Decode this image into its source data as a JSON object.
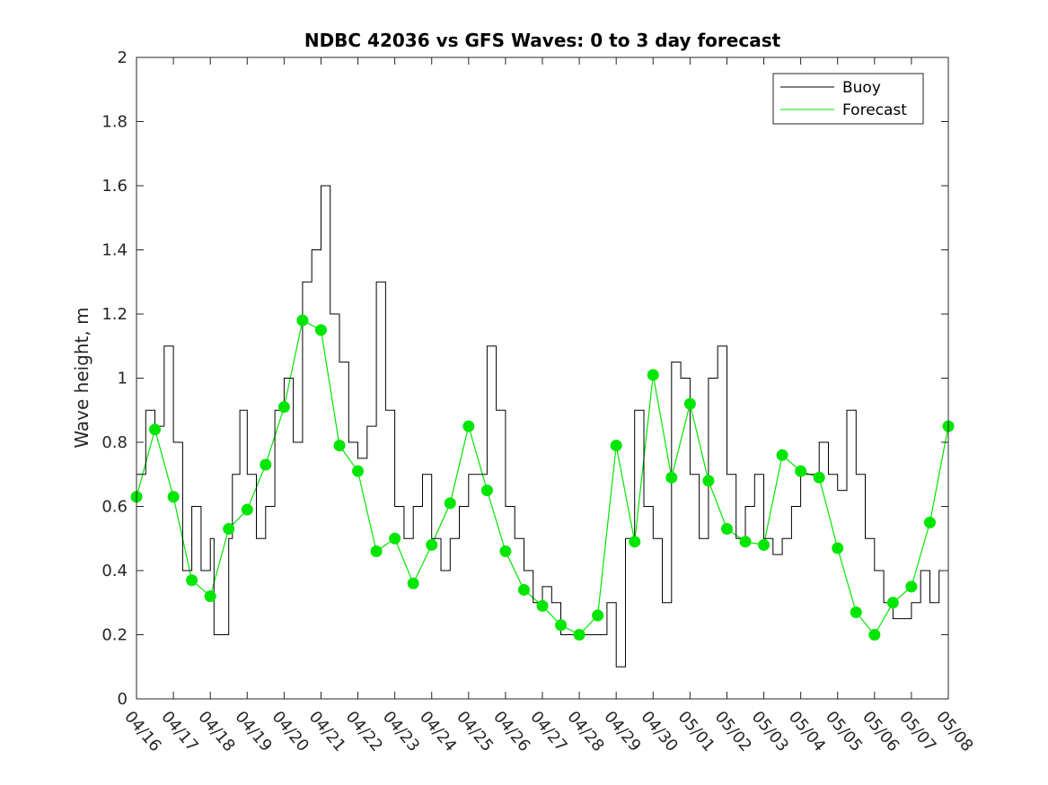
{
  "chart_data": {
    "type": "line",
    "title": "NDBC 42036 vs GFS Waves: 0 to 3 day forecast",
    "xlabel": "",
    "ylabel": "Wave height, m",
    "ylim": [
      0,
      2
    ],
    "yticks": [
      "0",
      "0.2",
      "0.4",
      "0.6",
      "0.8",
      "1",
      "1.2",
      "1.4",
      "1.6",
      "1.8",
      "2"
    ],
    "xlim_days": [
      0,
      22
    ],
    "xticks": [
      "04/16",
      "04/17",
      "04/18",
      "04/19",
      "04/20",
      "04/21",
      "04/22",
      "04/23",
      "04/24",
      "04/25",
      "04/26",
      "04/27",
      "04/28",
      "04/29",
      "04/30",
      "05/01",
      "05/02",
      "05/03",
      "05/04",
      "05/05",
      "05/06",
      "05/07",
      "05/08"
    ],
    "grid": false,
    "legend_position": "top-right",
    "legend": [
      {
        "label": "Buoy",
        "color": "#000000"
      },
      {
        "label": "Forecast",
        "color": "#00e600"
      }
    ],
    "series": [
      {
        "name": "Buoy",
        "color": "#000000",
        "x": [
          0,
          0.25,
          0.5,
          0.75,
          1.0,
          1.25,
          1.5,
          1.75,
          2.0,
          2.1,
          2.25,
          2.5,
          2.6,
          2.8,
          3.0,
          3.25,
          3.5,
          3.75,
          4.0,
          4.25,
          4.5,
          4.75,
          5.0,
          5.25,
          5.5,
          5.75,
          6.0,
          6.25,
          6.5,
          6.75,
          7.0,
          7.25,
          7.5,
          7.75,
          8.0,
          8.25,
          8.5,
          8.75,
          9.0,
          9.25,
          9.5,
          9.75,
          10.0,
          10.25,
          10.5,
          10.75,
          11.0,
          11.25,
          11.5,
          11.75,
          12.0,
          12.25,
          12.5,
          12.75,
          13.0,
          13.25,
          13.5,
          13.75,
          14.0,
          14.25,
          14.5,
          14.75,
          15.0,
          15.25,
          15.5,
          15.75,
          16.0,
          16.25,
          16.5,
          16.75,
          17.0,
          17.25,
          17.5,
          17.75,
          18.0,
          18.25,
          18.5,
          18.75,
          19.0,
          19.25,
          19.5,
          19.75,
          20.0,
          20.25,
          20.5,
          20.75,
          21.0,
          21.25,
          21.5,
          21.75,
          22.0
        ],
        "y": [
          0.7,
          0.9,
          0.85,
          1.1,
          0.8,
          0.4,
          0.6,
          0.4,
          0.5,
          0.2,
          0.2,
          0.5,
          0.7,
          0.9,
          0.7,
          0.5,
          0.6,
          0.9,
          1.0,
          0.8,
          1.3,
          1.4,
          1.6,
          1.2,
          1.05,
          0.8,
          0.75,
          0.85,
          1.3,
          0.9,
          0.6,
          0.5,
          0.6,
          0.7,
          0.5,
          0.4,
          0.5,
          0.6,
          0.7,
          0.7,
          1.1,
          0.9,
          0.6,
          0.5,
          0.4,
          0.3,
          0.35,
          0.3,
          0.2,
          0.2,
          0.2,
          0.2,
          0.2,
          0.3,
          0.1,
          0.5,
          0.9,
          0.6,
          0.5,
          0.3,
          1.05,
          1.0,
          0.7,
          0.5,
          1.0,
          1.1,
          0.7,
          0.5,
          0.6,
          0.7,
          0.5,
          0.45,
          0.5,
          0.6,
          0.7,
          0.7,
          0.8,
          0.7,
          0.65,
          0.9,
          0.7,
          0.5,
          0.4,
          0.3,
          0.25,
          0.25,
          0.3,
          0.4,
          0.3,
          0.4,
          0.6
        ]
      },
      {
        "name": "Forecast",
        "color": "#00e600",
        "x": [
          0,
          0.5,
          1.0,
          1.5,
          2.0,
          2.5,
          3.0,
          3.5,
          4.0,
          4.5,
          5.0,
          5.5,
          6.0,
          6.5,
          7.0,
          7.5,
          8.0,
          8.5,
          9.0,
          9.5,
          10.0,
          10.5,
          11.0,
          11.5,
          12.0,
          12.5,
          13.0,
          13.5,
          14.0,
          14.5,
          15.0,
          15.5,
          16.0,
          16.5,
          17.0,
          17.5,
          18.0,
          18.5,
          19.0,
          19.5,
          20.0,
          20.5,
          21.0,
          21.5,
          22.0
        ],
        "y": [
          0.63,
          0.84,
          0.63,
          0.37,
          0.32,
          0.53,
          0.59,
          0.73,
          0.91,
          1.18,
          1.15,
          0.79,
          0.71,
          0.46,
          0.5,
          0.36,
          0.48,
          0.61,
          0.85,
          0.65,
          0.46,
          0.34,
          0.29,
          0.23,
          0.2,
          0.26,
          0.79,
          0.49,
          1.01,
          0.69,
          0.92,
          0.68,
          0.53,
          0.49,
          0.48,
          0.76,
          0.71,
          0.69,
          0.47,
          0.27,
          0.2,
          0.3,
          0.35,
          0.55,
          0.85
        ]
      }
    ]
  }
}
